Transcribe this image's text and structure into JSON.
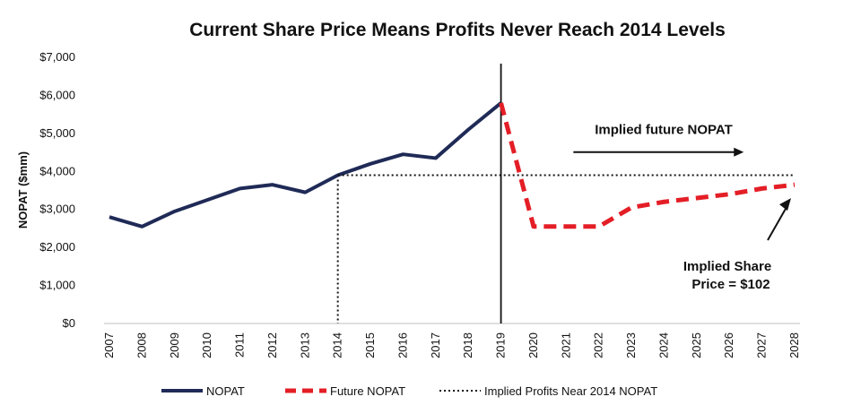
{
  "chart_data": {
    "type": "line",
    "title": "Current Share Price Means Profits Never Reach 2014 Levels",
    "xlabel": "",
    "ylabel": "NOPAT ($mm)",
    "ylim": [
      0,
      7000
    ],
    "y_ticks": [
      0,
      1000,
      2000,
      3000,
      4000,
      5000,
      6000,
      7000
    ],
    "y_tick_labels": [
      "$0",
      "$1,000",
      "$2,000",
      "$3,000",
      "$4,000",
      "$5,000",
      "$6,000",
      "$7,000"
    ],
    "categories": [
      "2007",
      "2008",
      "2009",
      "2010",
      "2011",
      "2012",
      "2013",
      "2014",
      "2015",
      "2016",
      "2017",
      "2018",
      "2019",
      "2020",
      "2021",
      "2022",
      "2023",
      "2024",
      "2025",
      "2026",
      "2027",
      "2028"
    ],
    "grid": false,
    "series": [
      {
        "name": "NOPAT",
        "color": "#1f2a56",
        "style": "solid",
        "x": [
          "2007",
          "2008",
          "2009",
          "2010",
          "2011",
          "2012",
          "2013",
          "2014",
          "2015",
          "2016",
          "2017",
          "2018",
          "2019"
        ],
        "values": [
          2800,
          2550,
          2950,
          3250,
          3550,
          3650,
          3450,
          3900,
          4200,
          4450,
          4350,
          5100,
          5800
        ]
      },
      {
        "name": "Future NOPAT",
        "color": "#e41e26",
        "style": "dashed",
        "x": [
          "2019",
          "2020",
          "2021",
          "2022",
          "2023",
          "2024",
          "2025",
          "2026",
          "2027",
          "2028"
        ],
        "values": [
          5800,
          2550,
          2550,
          2550,
          3050,
          3200,
          3300,
          3400,
          3550,
          3650
        ]
      },
      {
        "name": "Implied Profits Near 2014 NOPAT",
        "color": "#111111",
        "style": "dotted",
        "x": [
          "2014",
          "2028"
        ],
        "values": [
          3900,
          3900
        ]
      }
    ],
    "reference_lines": [
      {
        "kind": "vertical",
        "at": "2019",
        "style": "solid",
        "color": "#111111"
      },
      {
        "kind": "vertical",
        "at": "2014",
        "style": "dotted",
        "color": "#111111",
        "from": 0,
        "to": 3900
      }
    ],
    "annotations": [
      {
        "text": "Implied future NOPAT",
        "arrow": "right",
        "arrow_from": "2021",
        "arrow_to": "2026",
        "at_value": 4650
      },
      {
        "text_lines": [
          "Implied Share",
          "Price = $102"
        ],
        "arrow_to": "2028",
        "arrow_target_value": 3250
      }
    ],
    "legend_placement": "bottom"
  }
}
